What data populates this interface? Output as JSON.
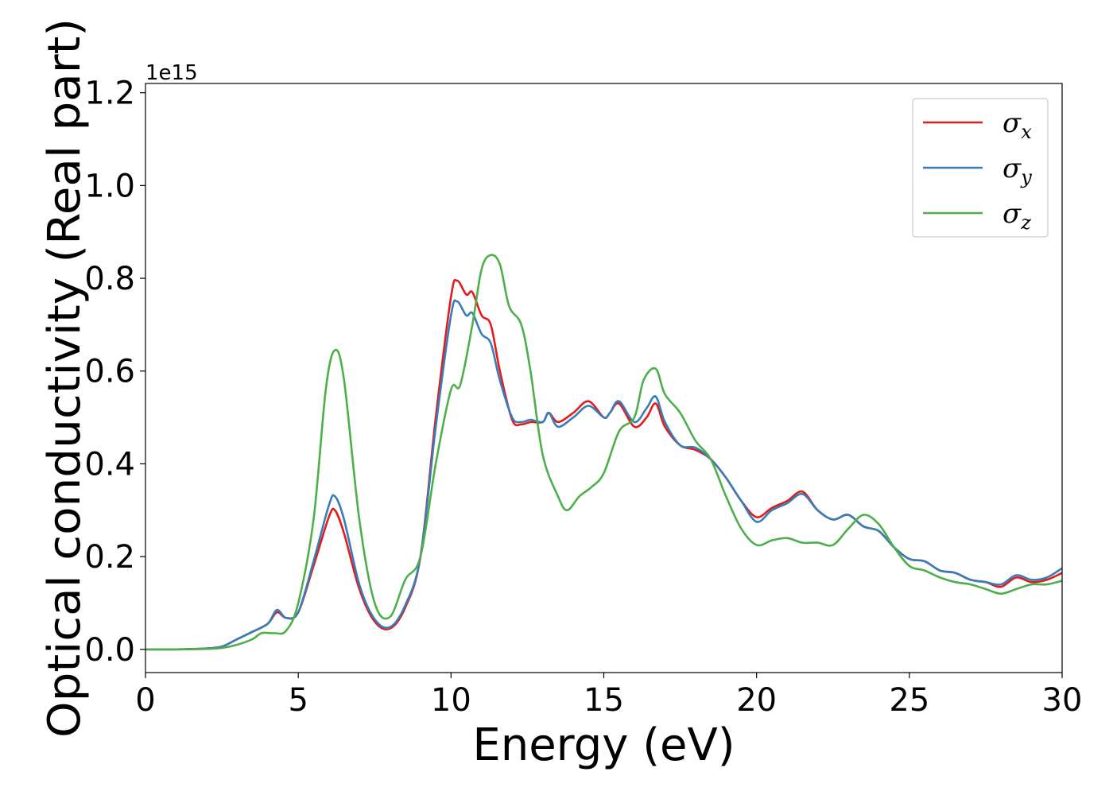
{
  "chart_data": {
    "type": "line",
    "xlabel": "Energy (eV)",
    "ylabel": "Optical conductivity (Real part)",
    "y_offset_label": "1e15",
    "xlim": [
      0,
      30
    ],
    "ylim": [
      -0.05,
      1.22
    ],
    "x_ticks": [
      0,
      5,
      10,
      15,
      20,
      25,
      30
    ],
    "x_tick_labels": [
      "0",
      "5",
      "10",
      "15",
      "20",
      "25",
      "30"
    ],
    "y_ticks": [
      0.0,
      0.2,
      0.4,
      0.6,
      0.8,
      1.0,
      1.2
    ],
    "y_tick_labels": [
      "0.0",
      "0.2",
      "0.4",
      "0.6",
      "0.8",
      "1.0",
      "1.2"
    ],
    "grid": false,
    "legend": {
      "placement": "top-right",
      "entries": [
        {
          "symbol": "σ",
          "subscript": "x",
          "color": "#e41a1c"
        },
        {
          "symbol": "σ",
          "subscript": "y",
          "color": "#377eb8"
        },
        {
          "symbol": "σ",
          "subscript": "z",
          "color": "#4daf4a"
        }
      ]
    },
    "series": [
      {
        "color": "#e41a1c",
        "points": [
          [
            0,
            0
          ],
          [
            1,
            0
          ],
          [
            2,
            0.002
          ],
          [
            2.5,
            0.006
          ],
          [
            3,
            0.022
          ],
          [
            3.5,
            0.038
          ],
          [
            4,
            0.055
          ],
          [
            4.3,
            0.08
          ],
          [
            4.6,
            0.068
          ],
          [
            5,
            0.08
          ],
          [
            5.5,
            0.18
          ],
          [
            6,
            0.285
          ],
          [
            6.2,
            0.3
          ],
          [
            6.5,
            0.25
          ],
          [
            7,
            0.13
          ],
          [
            7.5,
            0.06
          ],
          [
            8,
            0.045
          ],
          [
            8.5,
            0.09
          ],
          [
            9,
            0.2
          ],
          [
            9.5,
            0.5
          ],
          [
            10,
            0.76
          ],
          [
            10.2,
            0.795
          ],
          [
            10.5,
            0.765
          ],
          [
            10.7,
            0.77
          ],
          [
            11,
            0.72
          ],
          [
            11.3,
            0.7
          ],
          [
            11.6,
            0.6
          ],
          [
            12,
            0.495
          ],
          [
            12.3,
            0.485
          ],
          [
            12.6,
            0.49
          ],
          [
            13,
            0.49
          ],
          [
            13.2,
            0.51
          ],
          [
            13.5,
            0.49
          ],
          [
            14,
            0.51
          ],
          [
            14.5,
            0.535
          ],
          [
            15,
            0.5
          ],
          [
            15.2,
            0.51
          ],
          [
            15.5,
            0.53
          ],
          [
            16,
            0.48
          ],
          [
            16.4,
            0.5
          ],
          [
            16.7,
            0.53
          ],
          [
            17,
            0.48
          ],
          [
            17.5,
            0.44
          ],
          [
            18,
            0.43
          ],
          [
            18.5,
            0.41
          ],
          [
            19,
            0.37
          ],
          [
            19.5,
            0.32
          ],
          [
            20,
            0.285
          ],
          [
            20.5,
            0.305
          ],
          [
            21,
            0.32
          ],
          [
            21.5,
            0.34
          ],
          [
            22,
            0.3
          ],
          [
            22.5,
            0.28
          ],
          [
            23,
            0.29
          ],
          [
            23.5,
            0.265
          ],
          [
            24,
            0.255
          ],
          [
            24.5,
            0.22
          ],
          [
            25,
            0.195
          ],
          [
            25.5,
            0.19
          ],
          [
            26,
            0.17
          ],
          [
            26.5,
            0.165
          ],
          [
            27,
            0.15
          ],
          [
            27.5,
            0.145
          ],
          [
            28,
            0.135
          ],
          [
            28.5,
            0.155
          ],
          [
            29,
            0.145
          ],
          [
            29.5,
            0.15
          ],
          [
            30,
            0.165
          ]
        ]
      },
      {
        "color": "#377eb8",
        "points": [
          [
            0,
            0
          ],
          [
            1,
            0
          ],
          [
            2,
            0.002
          ],
          [
            2.5,
            0.006
          ],
          [
            3,
            0.022
          ],
          [
            3.5,
            0.038
          ],
          [
            4,
            0.055
          ],
          [
            4.3,
            0.085
          ],
          [
            4.6,
            0.068
          ],
          [
            5,
            0.08
          ],
          [
            5.5,
            0.19
          ],
          [
            6,
            0.31
          ],
          [
            6.2,
            0.33
          ],
          [
            6.5,
            0.28
          ],
          [
            7,
            0.14
          ],
          [
            7.5,
            0.065
          ],
          [
            8,
            0.048
          ],
          [
            8.5,
            0.095
          ],
          [
            9,
            0.2
          ],
          [
            9.5,
            0.48
          ],
          [
            10,
            0.72
          ],
          [
            10.2,
            0.75
          ],
          [
            10.5,
            0.72
          ],
          [
            10.7,
            0.725
          ],
          [
            11,
            0.68
          ],
          [
            11.3,
            0.66
          ],
          [
            11.6,
            0.58
          ],
          [
            12,
            0.5
          ],
          [
            12.3,
            0.49
          ],
          [
            12.6,
            0.495
          ],
          [
            13,
            0.49
          ],
          [
            13.2,
            0.51
          ],
          [
            13.5,
            0.48
          ],
          [
            14,
            0.5
          ],
          [
            14.5,
            0.525
          ],
          [
            15,
            0.5
          ],
          [
            15.2,
            0.51
          ],
          [
            15.5,
            0.535
          ],
          [
            16,
            0.49
          ],
          [
            16.4,
            0.52
          ],
          [
            16.7,
            0.545
          ],
          [
            17,
            0.49
          ],
          [
            17.5,
            0.44
          ],
          [
            18,
            0.435
          ],
          [
            18.5,
            0.41
          ],
          [
            19,
            0.37
          ],
          [
            19.5,
            0.32
          ],
          [
            20,
            0.275
          ],
          [
            20.5,
            0.3
          ],
          [
            21,
            0.315
          ],
          [
            21.5,
            0.335
          ],
          [
            22,
            0.3
          ],
          [
            22.5,
            0.28
          ],
          [
            23,
            0.29
          ],
          [
            23.5,
            0.265
          ],
          [
            24,
            0.255
          ],
          [
            24.5,
            0.22
          ],
          [
            25,
            0.195
          ],
          [
            25.5,
            0.19
          ],
          [
            26,
            0.17
          ],
          [
            26.5,
            0.165
          ],
          [
            27,
            0.15
          ],
          [
            27.5,
            0.145
          ],
          [
            28,
            0.14
          ],
          [
            28.5,
            0.16
          ],
          [
            29,
            0.15
          ],
          [
            29.5,
            0.155
          ],
          [
            30,
            0.175
          ]
        ]
      },
      {
        "color": "#4daf4a",
        "points": [
          [
            0,
            0
          ],
          [
            1,
            0
          ],
          [
            2,
            0.001
          ],
          [
            2.5,
            0.003
          ],
          [
            3,
            0.01
          ],
          [
            3.5,
            0.022
          ],
          [
            3.8,
            0.035
          ],
          [
            4.2,
            0.035
          ],
          [
            4.6,
            0.04
          ],
          [
            5,
            0.1
          ],
          [
            5.5,
            0.28
          ],
          [
            5.9,
            0.56
          ],
          [
            6.2,
            0.645
          ],
          [
            6.5,
            0.58
          ],
          [
            7,
            0.28
          ],
          [
            7.5,
            0.1
          ],
          [
            8,
            0.07
          ],
          [
            8.5,
            0.15
          ],
          [
            9,
            0.2
          ],
          [
            9.5,
            0.4
          ],
          [
            10,
            0.56
          ],
          [
            10.3,
            0.57
          ],
          [
            10.7,
            0.7
          ],
          [
            11,
            0.82
          ],
          [
            11.3,
            0.85
          ],
          [
            11.6,
            0.83
          ],
          [
            11.9,
            0.74
          ],
          [
            12.3,
            0.7
          ],
          [
            12.6,
            0.6
          ],
          [
            13,
            0.42
          ],
          [
            13.5,
            0.33
          ],
          [
            13.8,
            0.3
          ],
          [
            14.2,
            0.33
          ],
          [
            14.6,
            0.35
          ],
          [
            15,
            0.38
          ],
          [
            15.5,
            0.47
          ],
          [
            16,
            0.5
          ],
          [
            16.3,
            0.58
          ],
          [
            16.7,
            0.605
          ],
          [
            17,
            0.55
          ],
          [
            17.5,
            0.51
          ],
          [
            18,
            0.45
          ],
          [
            18.5,
            0.41
          ],
          [
            19,
            0.33
          ],
          [
            19.5,
            0.26
          ],
          [
            20,
            0.225
          ],
          [
            20.5,
            0.235
          ],
          [
            21,
            0.24
          ],
          [
            21.5,
            0.23
          ],
          [
            22,
            0.23
          ],
          [
            22.5,
            0.225
          ],
          [
            23,
            0.26
          ],
          [
            23.5,
            0.29
          ],
          [
            24,
            0.27
          ],
          [
            24.5,
            0.22
          ],
          [
            25,
            0.18
          ],
          [
            25.5,
            0.17
          ],
          [
            26,
            0.155
          ],
          [
            26.5,
            0.145
          ],
          [
            27,
            0.14
          ],
          [
            27.5,
            0.13
          ],
          [
            28,
            0.12
          ],
          [
            28.5,
            0.13
          ],
          [
            29,
            0.14
          ],
          [
            29.5,
            0.14
          ],
          [
            30,
            0.148
          ]
        ]
      }
    ]
  }
}
